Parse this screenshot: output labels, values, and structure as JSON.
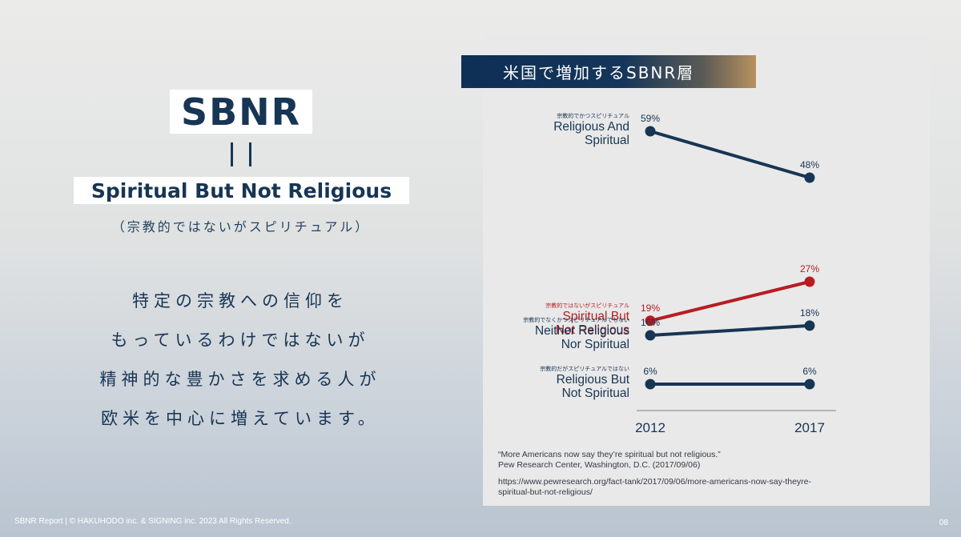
{
  "left": {
    "abbr": "SBNR",
    "full": "Spiritual But Not Religious",
    "full_jp": "（宗教的ではないがスピリチュアル）",
    "lines": [
      "特定の宗教への信仰を",
      "もっているわけではないが",
      "精神的な豊かさを求める人が",
      "欧米を中心に増えています。"
    ]
  },
  "footer": "SBNR Report | © HAKUHODO inc. & SIGNING inc. 2023 All Rights Reserved.",
  "page_number": "08",
  "source": {
    "quote": "“More Americans now say they’re spiritual but not religious.”",
    "publisher": "Pew Research Center, Washington, D.C. (2017/09/06)",
    "url_line1": "https://www.pewresearch.org/fact-tank/2017/09/06/more-americans-now-say-theyre-",
    "url_line2": "spiritual-but-not-religious/"
  },
  "chart_data": {
    "type": "line",
    "title": "米国で増加するSBNR層",
    "categories": [
      "2012",
      "2017"
    ],
    "series": [
      {
        "name": "Religious And Spiritual",
        "name_lines": [
          "Religious And",
          "Spiritual"
        ],
        "name_jp": "宗教的でかつスピリチュアル",
        "values": [
          59,
          48
        ],
        "labels": [
          "59%",
          "48%"
        ],
        "color": "#173554"
      },
      {
        "name": "Spiritual But Not Religious",
        "name_lines": [
          "Spiritual But",
          "Not Religious"
        ],
        "name_jp": "宗教的ではないがスピリチュアル",
        "values": [
          19,
          27
        ],
        "labels": [
          "19%",
          "27%"
        ],
        "color": "#b81c22"
      },
      {
        "name": "Neither Religious Nor Spiritual",
        "name_lines": [
          "Neither Religious",
          "Nor Spiritual"
        ],
        "name_jp": "宗教的でなくかつスピリチュアルでもない",
        "values": [
          16,
          18
        ],
        "labels": [
          "16%",
          "18%"
        ],
        "color": "#173554"
      },
      {
        "name": "Religious But Not Spiritual",
        "name_lines": [
          "Religious But",
          "Not Spiritual"
        ],
        "name_jp": "宗教的だがスピリチュアルではない",
        "values": [
          6,
          6
        ],
        "labels": [
          "6%",
          "6%"
        ],
        "color": "#173554"
      }
    ],
    "ylim": [
      6,
      59
    ],
    "grid": false,
    "legend": "left"
  }
}
